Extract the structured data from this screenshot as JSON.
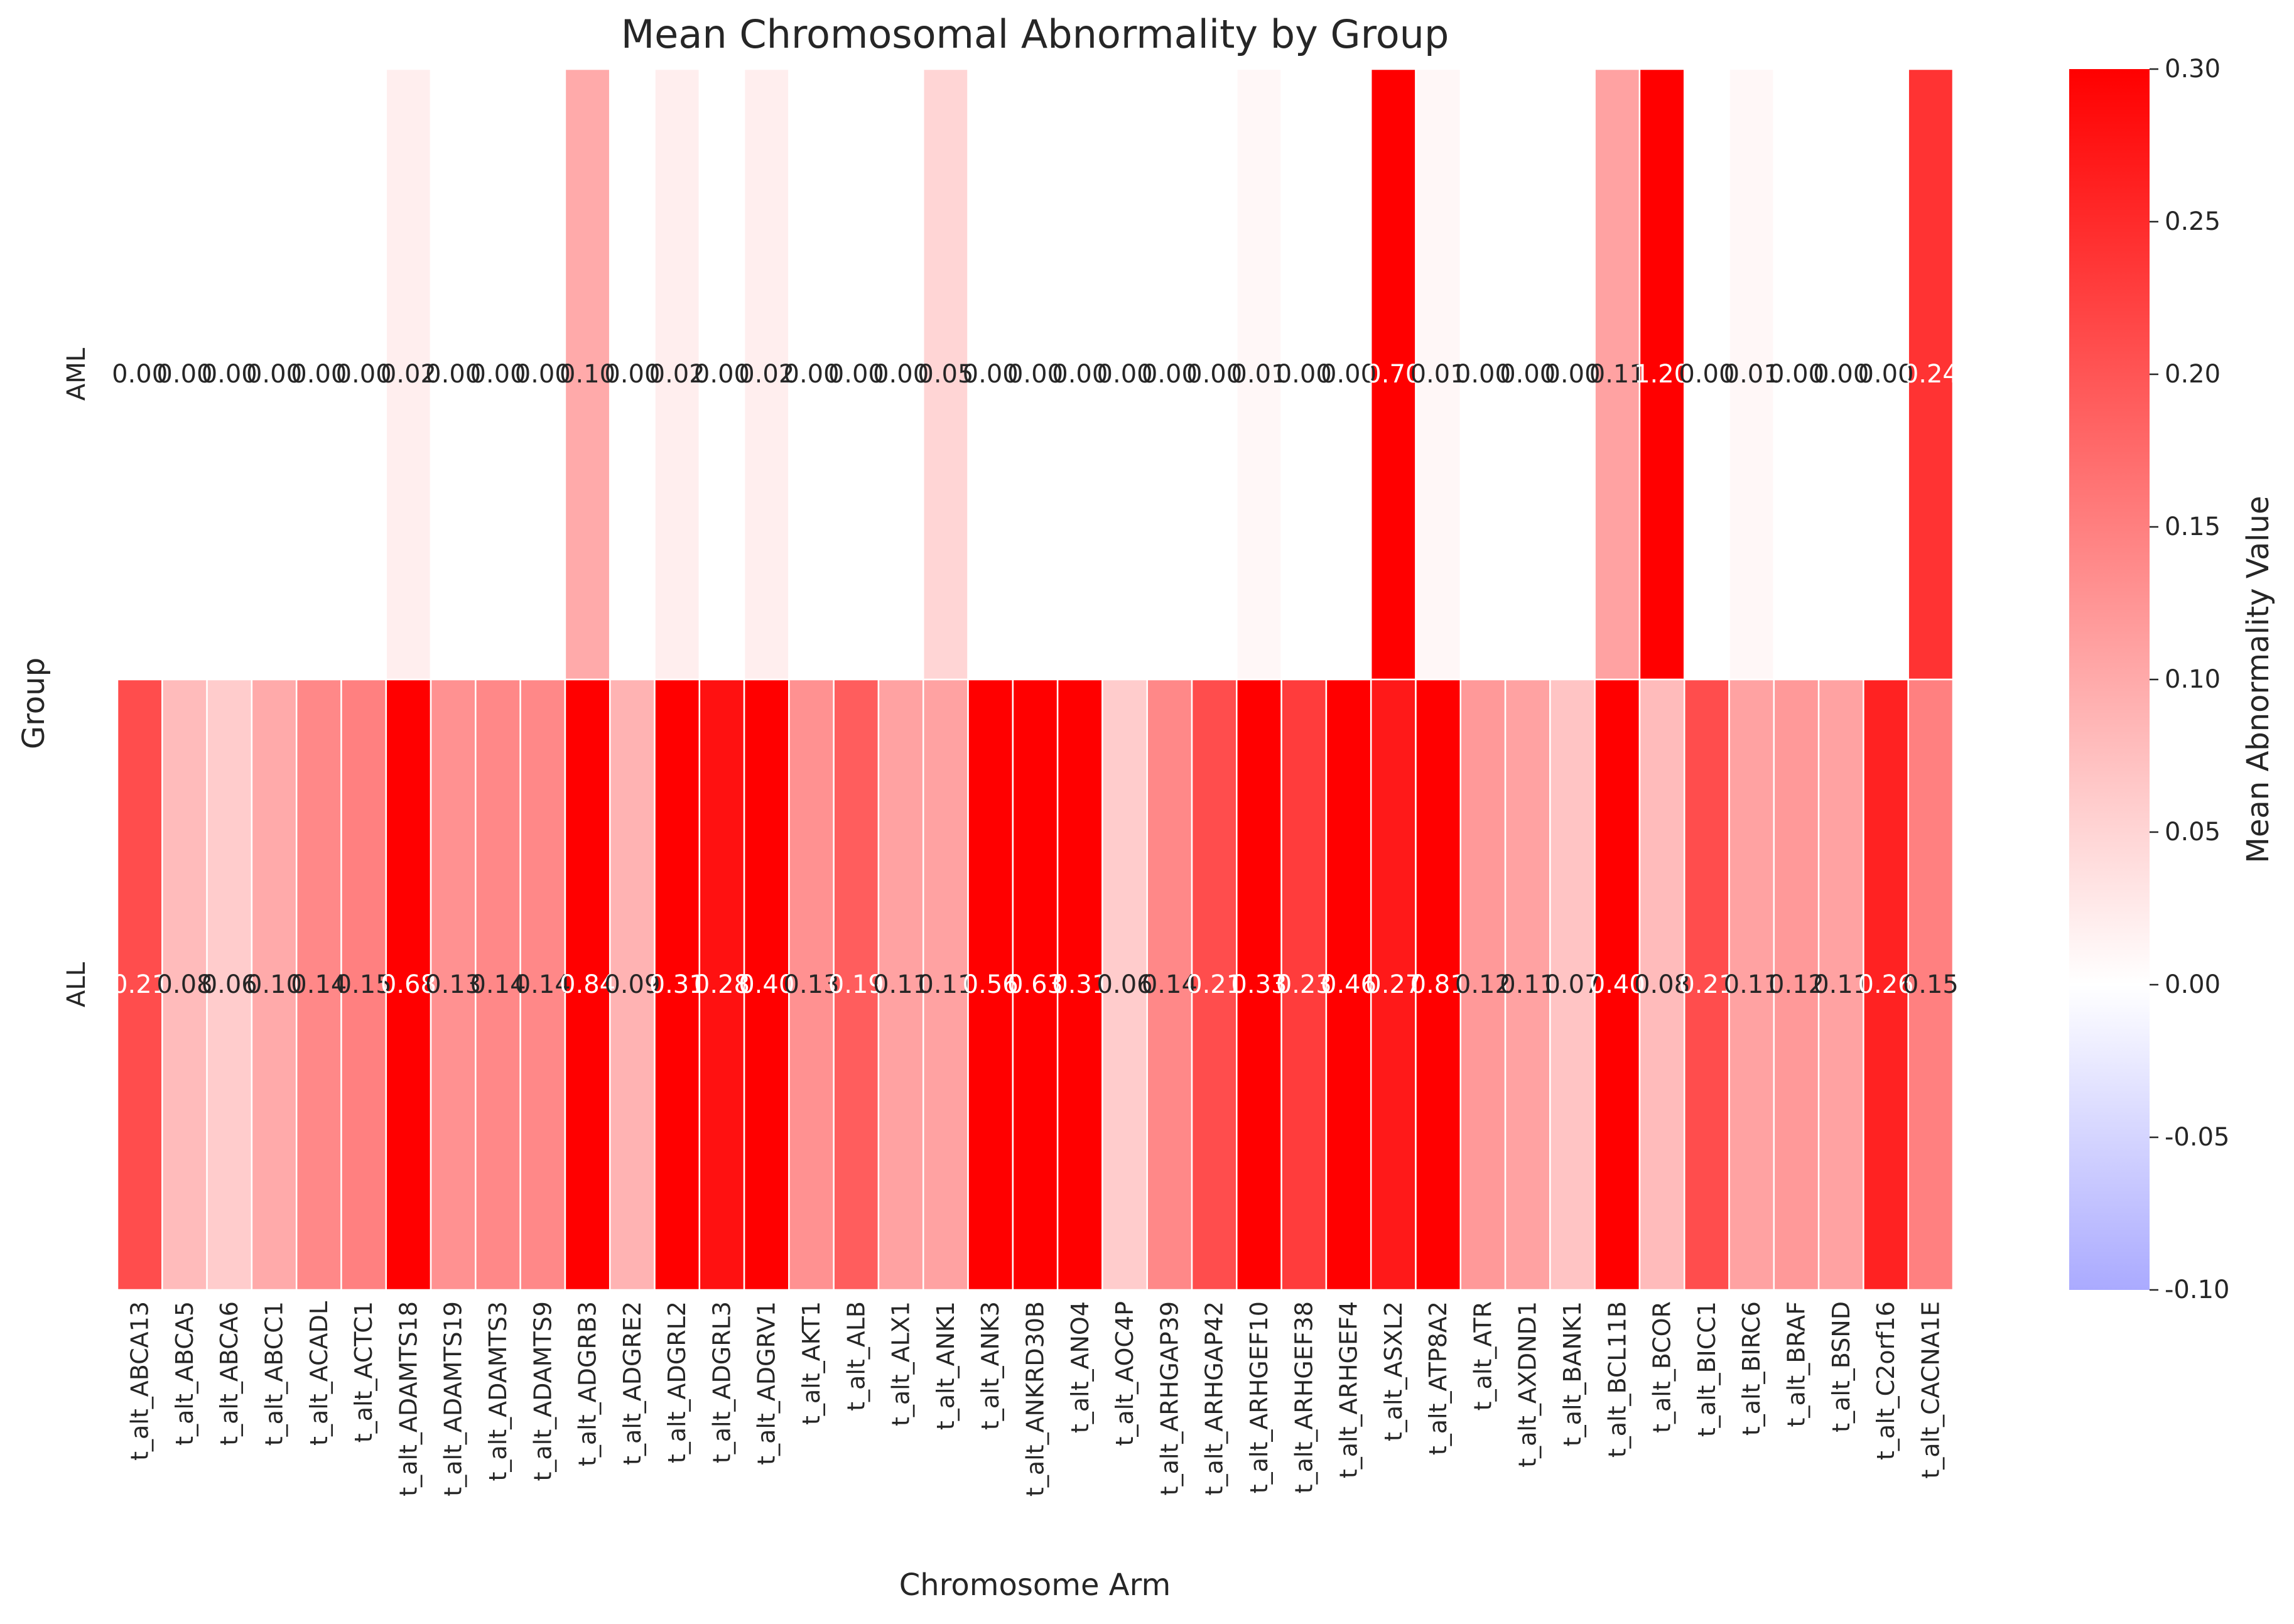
{
  "chart_data": {
    "type": "heatmap",
    "title": "Mean Chromosomal Abnormality by Group",
    "xlabel": "Chromosome Arm",
    "ylabel": "Group",
    "rows": [
      "AML",
      "ALL"
    ],
    "columns": [
      "t_alt_ABCA13",
      "t_alt_ABCA5",
      "t_alt_ABCA6",
      "t_alt_ABCC1",
      "t_alt_ACADL",
      "t_alt_ACTC1",
      "t_alt_ADAMTS18",
      "t_alt_ADAMTS19",
      "t_alt_ADAMTS3",
      "t_alt_ADAMTS9",
      "t_alt_ADGRB3",
      "t_alt_ADGRE2",
      "t_alt_ADGRL2",
      "t_alt_ADGRL3",
      "t_alt_ADGRV1",
      "t_alt_AKT1",
      "t_alt_ALB",
      "t_alt_ALX1",
      "t_alt_ANK1",
      "t_alt_ANK3",
      "t_alt_ANKRD30B",
      "t_alt_ANO4",
      "t_alt_AOC4P",
      "t_alt_ARHGAP39",
      "t_alt_ARHGAP42",
      "t_alt_ARHGEF10",
      "t_alt_ARHGEF38",
      "t_alt_ARHGEF4",
      "t_alt_ASXL2",
      "t_alt_ATP8A2",
      "t_alt_ATR",
      "t_alt_AXDND1",
      "t_alt_BANK1",
      "t_alt_BCL11B",
      "t_alt_BCOR",
      "t_alt_BICC1",
      "t_alt_BIRC6",
      "t_alt_BRAF",
      "t_alt_BSND",
      "t_alt_C2orf16",
      "t_alt_CACNA1E"
    ],
    "values": [
      [
        0.0,
        0.0,
        0.0,
        0.0,
        0.0,
        0.0,
        0.02,
        0.0,
        0.0,
        0.0,
        0.1,
        0.0,
        0.02,
        0.0,
        0.02,
        0.0,
        0.0,
        0.0,
        0.05,
        0.0,
        0.0,
        0.0,
        0.0,
        0.0,
        0.0,
        0.01,
        0.0,
        0.0,
        0.7,
        0.01,
        0.0,
        0.0,
        0.0,
        0.11,
        1.2,
        0.0,
        0.01,
        0.0,
        0.0,
        0.0,
        0.24
      ],
      [
        0.21,
        0.08,
        0.06,
        0.1,
        0.14,
        0.15,
        0.68,
        0.13,
        0.14,
        0.14,
        0.84,
        0.09,
        0.31,
        0.28,
        0.4,
        0.13,
        0.19,
        0.11,
        0.11,
        0.56,
        0.63,
        0.31,
        0.06,
        0.14,
        0.21,
        0.33,
        0.23,
        0.46,
        0.27,
        0.81,
        0.12,
        0.11,
        0.07,
        0.4,
        0.08,
        0.21,
        0.11,
        0.12,
        0.11,
        0.26,
        0.15
      ]
    ],
    "value_labels": [
      [
        "0.00",
        "0.00",
        "0.00",
        "0.00",
        "0.00",
        "0.00",
        "0.02",
        "0.00",
        "0.00",
        "0.00",
        "0.10",
        "0.00",
        "0.02",
        "0.00",
        "0.02",
        "0.00",
        "0.00",
        "0.00",
        "0.05",
        "0.00",
        "0.00",
        "0.00",
        "0.00",
        "0.00",
        "0.00",
        "0.01",
        "0.00",
        "0.00",
        "0.70",
        "0.01",
        "0.00",
        "0.00",
        "0.00",
        "0.11",
        "1.20",
        "0.00",
        "0.01",
        "0.00",
        "0.00",
        "0.00",
        "0.24"
      ],
      [
        "0.21",
        "0.08",
        "0.06",
        "0.10",
        "0.14",
        "0.15",
        "0.68",
        "0.13",
        "0.14",
        "0.14",
        "0.84",
        "0.09",
        "0.31",
        "0.28",
        "0.40",
        "0.13",
        "0.19",
        "0.11",
        "0.11",
        "0.56",
        "0.63",
        "0.31",
        "0.06",
        "0.14",
        "0.21",
        "0.33",
        "0.23",
        "0.46",
        "0.27",
        "0.81",
        "0.12",
        "0.11",
        "0.07",
        "0.40",
        "0.08",
        "0.21",
        "0.11",
        "0.12",
        "0.11",
        "0.26",
        "0.15"
      ]
    ],
    "colorbar": {
      "label": "Mean Abnormality Value",
      "vmin": -0.1,
      "vmax": 0.3,
      "center": 0,
      "ticks": [
        "-0.10",
        "-0.05",
        "0.00",
        "0.05",
        "0.10",
        "0.15",
        "0.20",
        "0.25",
        "0.30"
      ],
      "low_color": "#aaaaff",
      "mid_color": "#ffffff",
      "high_color": "#ff0000"
    },
    "colormap": "bwr-like (light blue - white - red)",
    "grid": false
  }
}
